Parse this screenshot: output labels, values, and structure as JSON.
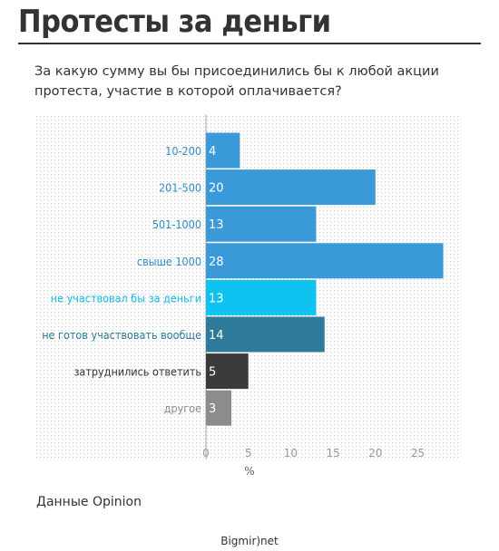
{
  "header": {
    "title": "Протесты за деньги",
    "subtitle": "За какую сумму вы бы присоединились бы к любой акции протеста, участие в которой оплачивается?"
  },
  "source": "Данные Opinion",
  "footer": "Bigmir)net",
  "colors": {
    "blue": "#3a9ad9",
    "cyan": "#0fc3f0",
    "teal": "#2e7a9a",
    "dark": "#3a3a3a",
    "gray": "#8c8c8c",
    "label_blue": "#2f8bc7",
    "label_cyan": "#14b8e6",
    "label_teal": "#2e7a9a",
    "label_dark": "#333333",
    "label_gray": "#8c8c8c"
  },
  "chart_data": {
    "type": "bar",
    "orientation": "horizontal",
    "categories": [
      "10-200",
      "201-500",
      "501-1000",
      "свыше 1000",
      "не участвовал бы за деньги",
      "не готов участвовать вообще",
      "затруднились ответить",
      "другое"
    ],
    "values": [
      4,
      20,
      13,
      28,
      13,
      14,
      5,
      3
    ],
    "bar_colors": [
      "blue",
      "blue",
      "blue",
      "blue",
      "cyan",
      "teal",
      "dark",
      "gray"
    ],
    "label_colors": [
      "label_blue",
      "label_blue",
      "label_blue",
      "label_blue",
      "label_cyan",
      "label_teal",
      "label_dark",
      "label_gray"
    ],
    "xlabel": "%",
    "xticks": [
      0,
      5,
      10,
      15,
      20,
      25
    ],
    "xlim": [
      0,
      29
    ],
    "grid": "dotted"
  }
}
